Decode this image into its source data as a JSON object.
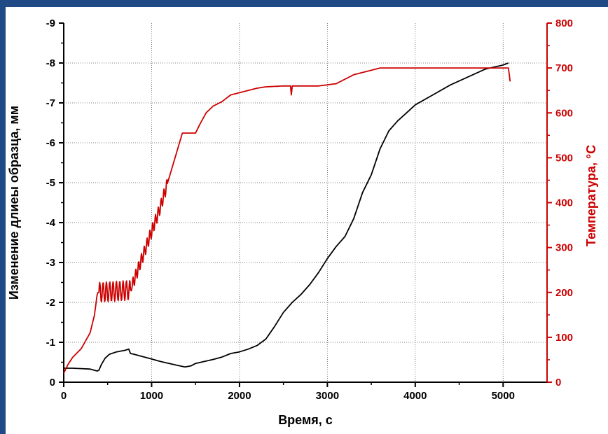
{
  "chart_data": {
    "type": "line",
    "xlabel": "Время, с",
    "ylabel_left": "Изменение длиеы образца, мм",
    "ylabel_right": "Температура, °C",
    "xlim": [
      0,
      5500
    ],
    "ylim_left": [
      0,
      -9
    ],
    "ylim_right": [
      0,
      800
    ],
    "x_ticks": [
      "0",
      "1000",
      "2000",
      "3000",
      "4000",
      "5000"
    ],
    "y_left_ticks": [
      "0",
      "-1",
      "-2",
      "-3",
      "-4",
      "-5",
      "-6",
      "-7",
      "-8",
      "-9"
    ],
    "y_right_ticks": [
      "0",
      "100",
      "200",
      "300",
      "400",
      "500",
      "600",
      "700",
      "800"
    ],
    "grid": true,
    "series": [
      {
        "axis": "left",
        "color": "#000000",
        "points": [
          [
            0,
            -0.35
          ],
          [
            100,
            -0.35
          ],
          [
            200,
            -0.34
          ],
          [
            300,
            -0.33
          ],
          [
            380,
            -0.28
          ],
          [
            400,
            -0.3
          ],
          [
            430,
            -0.45
          ],
          [
            470,
            -0.6
          ],
          [
            520,
            -0.7
          ],
          [
            600,
            -0.76
          ],
          [
            700,
            -0.8
          ],
          [
            740,
            -0.83
          ],
          [
            760,
            -0.72
          ],
          [
            800,
            -0.7
          ],
          [
            900,
            -0.64
          ],
          [
            1000,
            -0.58
          ],
          [
            1100,
            -0.52
          ],
          [
            1200,
            -0.47
          ],
          [
            1300,
            -0.42
          ],
          [
            1380,
            -0.38
          ],
          [
            1450,
            -0.41
          ],
          [
            1500,
            -0.47
          ],
          [
            1600,
            -0.52
          ],
          [
            1700,
            -0.57
          ],
          [
            1800,
            -0.63
          ],
          [
            1900,
            -0.72
          ],
          [
            2000,
            -0.76
          ],
          [
            2100,
            -0.83
          ],
          [
            2200,
            -0.92
          ],
          [
            2300,
            -1.08
          ],
          [
            2400,
            -1.4
          ],
          [
            2500,
            -1.75
          ],
          [
            2600,
            -2.0
          ],
          [
            2700,
            -2.2
          ],
          [
            2800,
            -2.45
          ],
          [
            2900,
            -2.75
          ],
          [
            3000,
            -3.1
          ],
          [
            3100,
            -3.4
          ],
          [
            3200,
            -3.65
          ],
          [
            3300,
            -4.1
          ],
          [
            3400,
            -4.75
          ],
          [
            3500,
            -5.2
          ],
          [
            3600,
            -5.85
          ],
          [
            3700,
            -6.3
          ],
          [
            3800,
            -6.55
          ],
          [
            3900,
            -6.75
          ],
          [
            4000,
            -6.95
          ],
          [
            4200,
            -7.2
          ],
          [
            4400,
            -7.45
          ],
          [
            4600,
            -7.65
          ],
          [
            4800,
            -7.85
          ],
          [
            5000,
            -7.95
          ],
          [
            5060,
            -8.0
          ]
        ]
      },
      {
        "axis": "right",
        "color": "#cc0000",
        "points": [
          [
            0,
            20
          ],
          [
            50,
            40
          ],
          [
            100,
            55
          ],
          [
            200,
            75
          ],
          [
            300,
            110
          ],
          [
            350,
            150
          ],
          [
            380,
            195
          ],
          [
            390,
            200
          ],
          [
            760,
            205
          ],
          [
            1100,
            390
          ],
          [
            1350,
            555
          ],
          [
            1500,
            555
          ],
          [
            1550,
            575
          ],
          [
            1620,
            600
          ],
          [
            1700,
            615
          ],
          [
            1800,
            625
          ],
          [
            1900,
            640
          ],
          [
            2000,
            645
          ],
          [
            2100,
            650
          ],
          [
            2200,
            655
          ],
          [
            2300,
            658
          ],
          [
            2500,
            660
          ],
          [
            2580,
            660
          ],
          [
            2590,
            640
          ],
          [
            2600,
            660
          ],
          [
            2900,
            660
          ],
          [
            3100,
            665
          ],
          [
            3200,
            675
          ],
          [
            3300,
            685
          ],
          [
            3500,
            695
          ],
          [
            3600,
            700
          ],
          [
            5000,
            700
          ],
          [
            5060,
            700
          ],
          [
            5080,
            670
          ]
        ]
      }
    ]
  }
}
